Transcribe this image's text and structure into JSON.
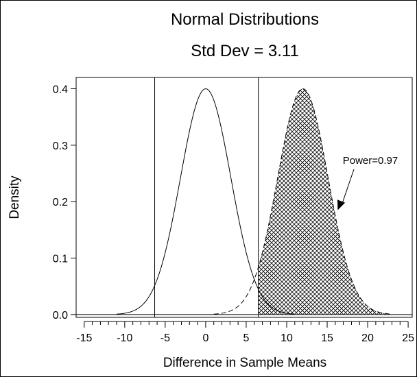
{
  "chart_data": {
    "type": "line",
    "title": "Normal Distributions",
    "subtitle": "Std Dev = 3.11",
    "xlabel": "Difference in Sample Means",
    "ylabel": "Density",
    "xlim": [
      -16,
      25.5
    ],
    "ylim": [
      -0.005,
      0.42
    ],
    "x_ticks": [
      -15,
      -10,
      -5,
      0,
      5,
      10,
      15,
      20,
      25
    ],
    "x_tick_labels": [
      "-15",
      "-10",
      "-5",
      "0",
      "5",
      "10",
      "15",
      "20",
      "25"
    ],
    "x_minor_step": 1,
    "y_ticks": [
      0.0,
      0.1,
      0.2,
      0.3,
      0.4
    ],
    "y_tick_labels": [
      "0.0",
      "0.1",
      "0.2",
      "0.3",
      "0.4"
    ],
    "series": [
      {
        "mean": 0,
        "peak_density": 0.4,
        "sd_units": 3.11,
        "range": [
          -11,
          11
        ],
        "style": "solid"
      },
      {
        "mean": 12,
        "peak_density": 0.4,
        "sd_units": 3.11,
        "range": [
          1,
          23
        ],
        "style": "dashed-outline",
        "shaded_from": 6.5,
        "fill": "crosshatch"
      }
    ],
    "critical_lines": [
      -6.3,
      6.5
    ],
    "annotation": {
      "text": "Power=0.97",
      "arrow_to": [
        16.3,
        0.185
      ]
    },
    "grid": false,
    "legend": "none"
  }
}
